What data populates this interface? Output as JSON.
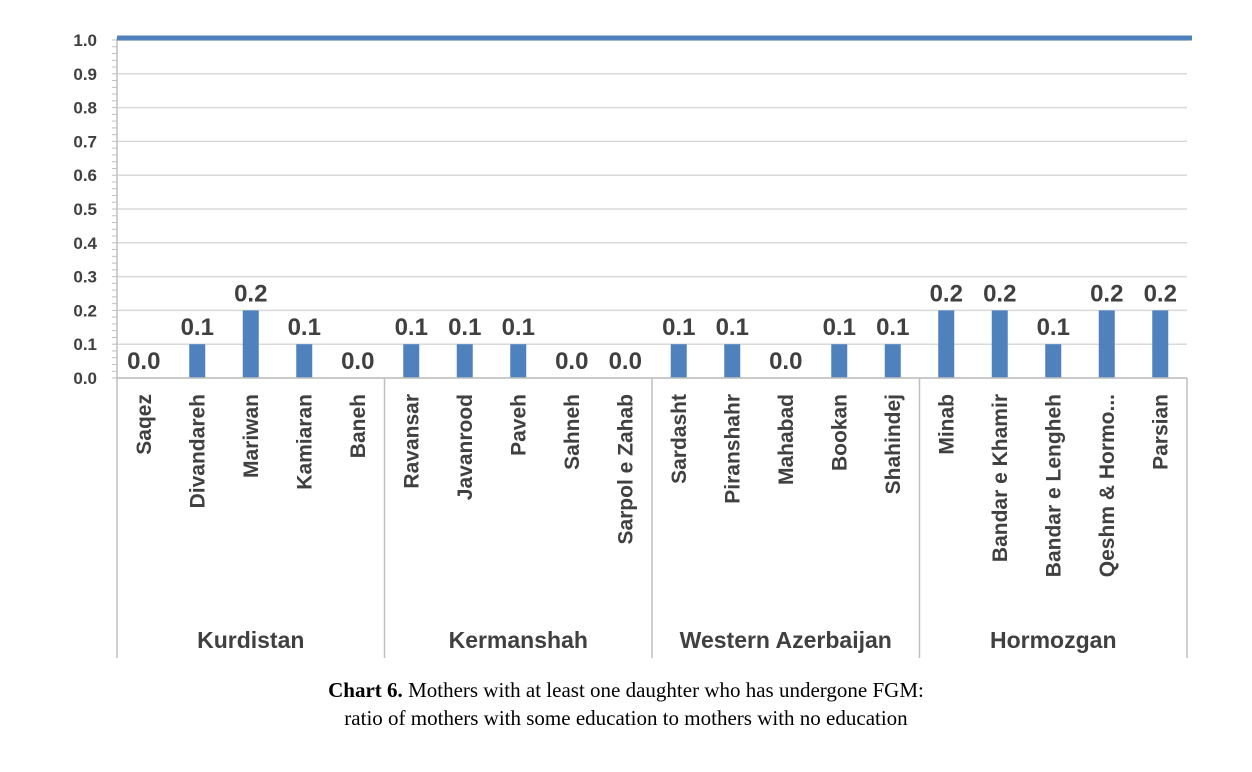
{
  "chart_data": {
    "type": "bar",
    "categories": [
      "Saqez",
      "Divandareh",
      "Mariwan",
      "Kamiaran",
      "Baneh",
      "Ravansar",
      "Javanrood",
      "Paveh",
      "Sahneh",
      "Sarpol e Zahab",
      "Sardasht",
      "Piranshahr",
      "Mahabad",
      "Bookan",
      "Shahindej",
      "Minab",
      "Bandar e Khamir",
      "Bandar e Lengheh",
      "Qeshm & Hormo...",
      "Parsian"
    ],
    "values": [
      0.0,
      0.1,
      0.2,
      0.1,
      0.0,
      0.1,
      0.1,
      0.1,
      0.0,
      0.0,
      0.1,
      0.1,
      0.0,
      0.1,
      0.1,
      0.2,
      0.2,
      0.1,
      0.2,
      0.2
    ],
    "data_labels": [
      "0.0",
      "0.1",
      "0.2",
      "0.1",
      "0.0",
      "0.1",
      "0.1",
      "0.1",
      "0.0",
      "0.0",
      "0.1",
      "0.1",
      "0.0",
      "0.1",
      "0.1",
      "0.2",
      "0.2",
      "0.1",
      "0.2",
      "0.2"
    ],
    "groups": [
      {
        "name": "Kurdistan",
        "count": 5
      },
      {
        "name": "Kermanshah",
        "count": 5
      },
      {
        "name": "Western Azerbaijan",
        "count": 5
      },
      {
        "name": "Hormozgan",
        "count": 5
      }
    ],
    "reference_line": 1.0,
    "ylim": [
      0,
      1.0
    ],
    "yticks": [
      "0.0",
      "0.1",
      "0.2",
      "0.3",
      "0.4",
      "0.5",
      "0.6",
      "0.7",
      "0.8",
      "0.9",
      "1.0"
    ],
    "grid": true,
    "legend": "none",
    "bar_color": "#4f81bd",
    "reference_line_color": "#4f81bd"
  },
  "caption": {
    "label": "Chart 6.",
    "line1": "Mothers with at least one daughter who has undergone FGM:",
    "line2": "ratio of mothers with some education to mothers with no education"
  }
}
